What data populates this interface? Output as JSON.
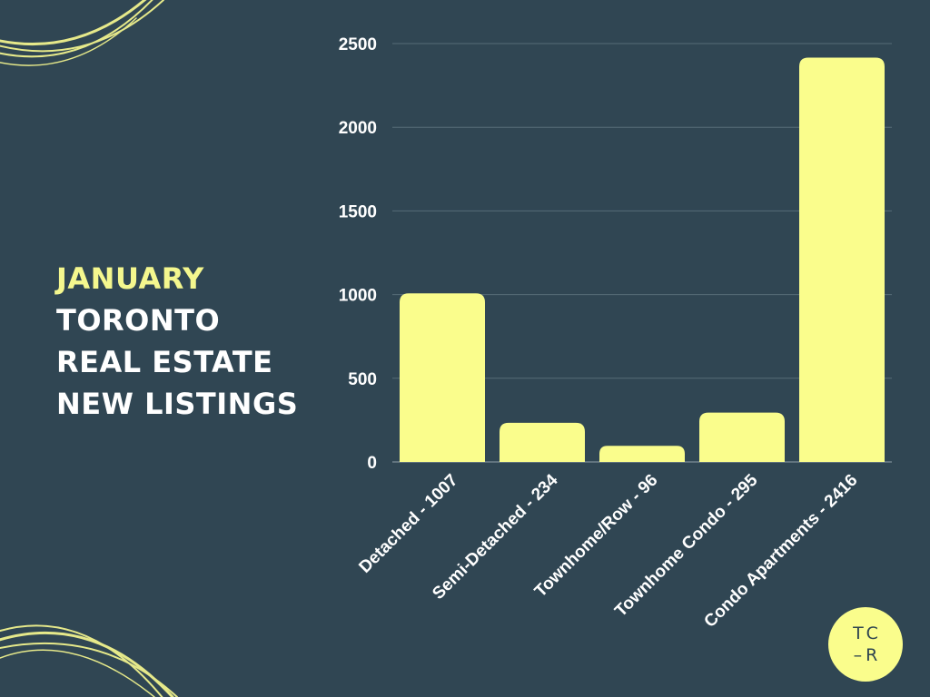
{
  "title": {
    "line1": "JANUARY",
    "line2": "TORONTO",
    "line3": "REAL ESTATE",
    "line4": "NEW LISTINGS"
  },
  "logo": {
    "line1": "TC",
    "line2": "–R"
  },
  "colors": {
    "background": "#304653",
    "bar": "#fafd8c",
    "accent": "#f4f78e",
    "text": "#ffffff"
  },
  "chart_data": {
    "type": "bar",
    "categories": [
      "Detached - 1007",
      "Semi-Detached - 234",
      "Townhome/Row - 96",
      "Townhome Condo - 295",
      "Condo Apartments - 2416"
    ],
    "values": [
      1007,
      234,
      96,
      295,
      2416
    ],
    "yticks": [
      0,
      500,
      1000,
      1500,
      2000,
      2500
    ],
    "ylim": [
      0,
      2500
    ],
    "grid": true,
    "legend": "none"
  }
}
